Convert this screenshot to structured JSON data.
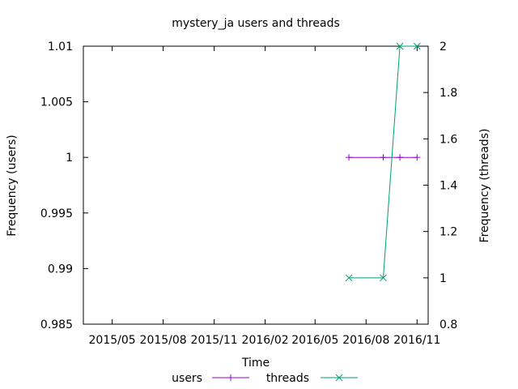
{
  "chart_data": {
    "type": "line",
    "title": "mystery_ja users and threads",
    "xlabel": "Time",
    "ylabel": "Frequency (users)",
    "y2label": "Frequency (threads)",
    "xlim": [
      "2015-03-10",
      "2016-11-21"
    ],
    "ylim": [
      0.985,
      1.01
    ],
    "y2lim": [
      0.8,
      2
    ],
    "x_ticks": [
      {
        "date": "2015-05-01",
        "label": "2015/05"
      },
      {
        "date": "2015-08-01",
        "label": "2015/08"
      },
      {
        "date": "2015-11-01",
        "label": "2015/11"
      },
      {
        "date": "2016-02-01",
        "label": "2016/02"
      },
      {
        "date": "2016-05-01",
        "label": "2016/05"
      },
      {
        "date": "2016-08-01",
        "label": "2016/08"
      },
      {
        "date": "2016-11-01",
        "label": "2016/11"
      }
    ],
    "y_ticks": [
      {
        "value": 0.985,
        "label": "0.985"
      },
      {
        "value": 0.99,
        "label": "0.99"
      },
      {
        "value": 0.995,
        "label": "0.995"
      },
      {
        "value": 1.0,
        "label": "1"
      },
      {
        "value": 1.005,
        "label": "1.005"
      },
      {
        "value": 1.01,
        "label": "1.01"
      }
    ],
    "y2_ticks": [
      {
        "value": 0.8,
        "label": "0.8"
      },
      {
        "value": 1.0,
        "label": "1"
      },
      {
        "value": 1.2,
        "label": "1.2"
      },
      {
        "value": 1.4,
        "label": "1.4"
      },
      {
        "value": 1.6,
        "label": "1.6"
      },
      {
        "value": 1.8,
        "label": "1.8"
      },
      {
        "value": 2.0,
        "label": "2"
      }
    ],
    "grid": false,
    "legend_position": "bottom-center",
    "series": [
      {
        "name": "users",
        "axis": "left",
        "color": "#9400d3",
        "marker": "plus",
        "points": [
          {
            "x": "2016-07-01",
            "y": 1
          },
          {
            "x": "2016-09-01",
            "y": 1
          },
          {
            "x": "2016-10-01",
            "y": 1
          },
          {
            "x": "2016-11-01",
            "y": 1
          }
        ]
      },
      {
        "name": "threads",
        "axis": "right",
        "color": "#009e73",
        "marker": "cross",
        "points": [
          {
            "x": "2016-07-01",
            "y": 1
          },
          {
            "x": "2016-09-01",
            "y": 1
          },
          {
            "x": "2016-10-01",
            "y": 2
          },
          {
            "x": "2016-11-01",
            "y": 2
          }
        ]
      }
    ]
  }
}
